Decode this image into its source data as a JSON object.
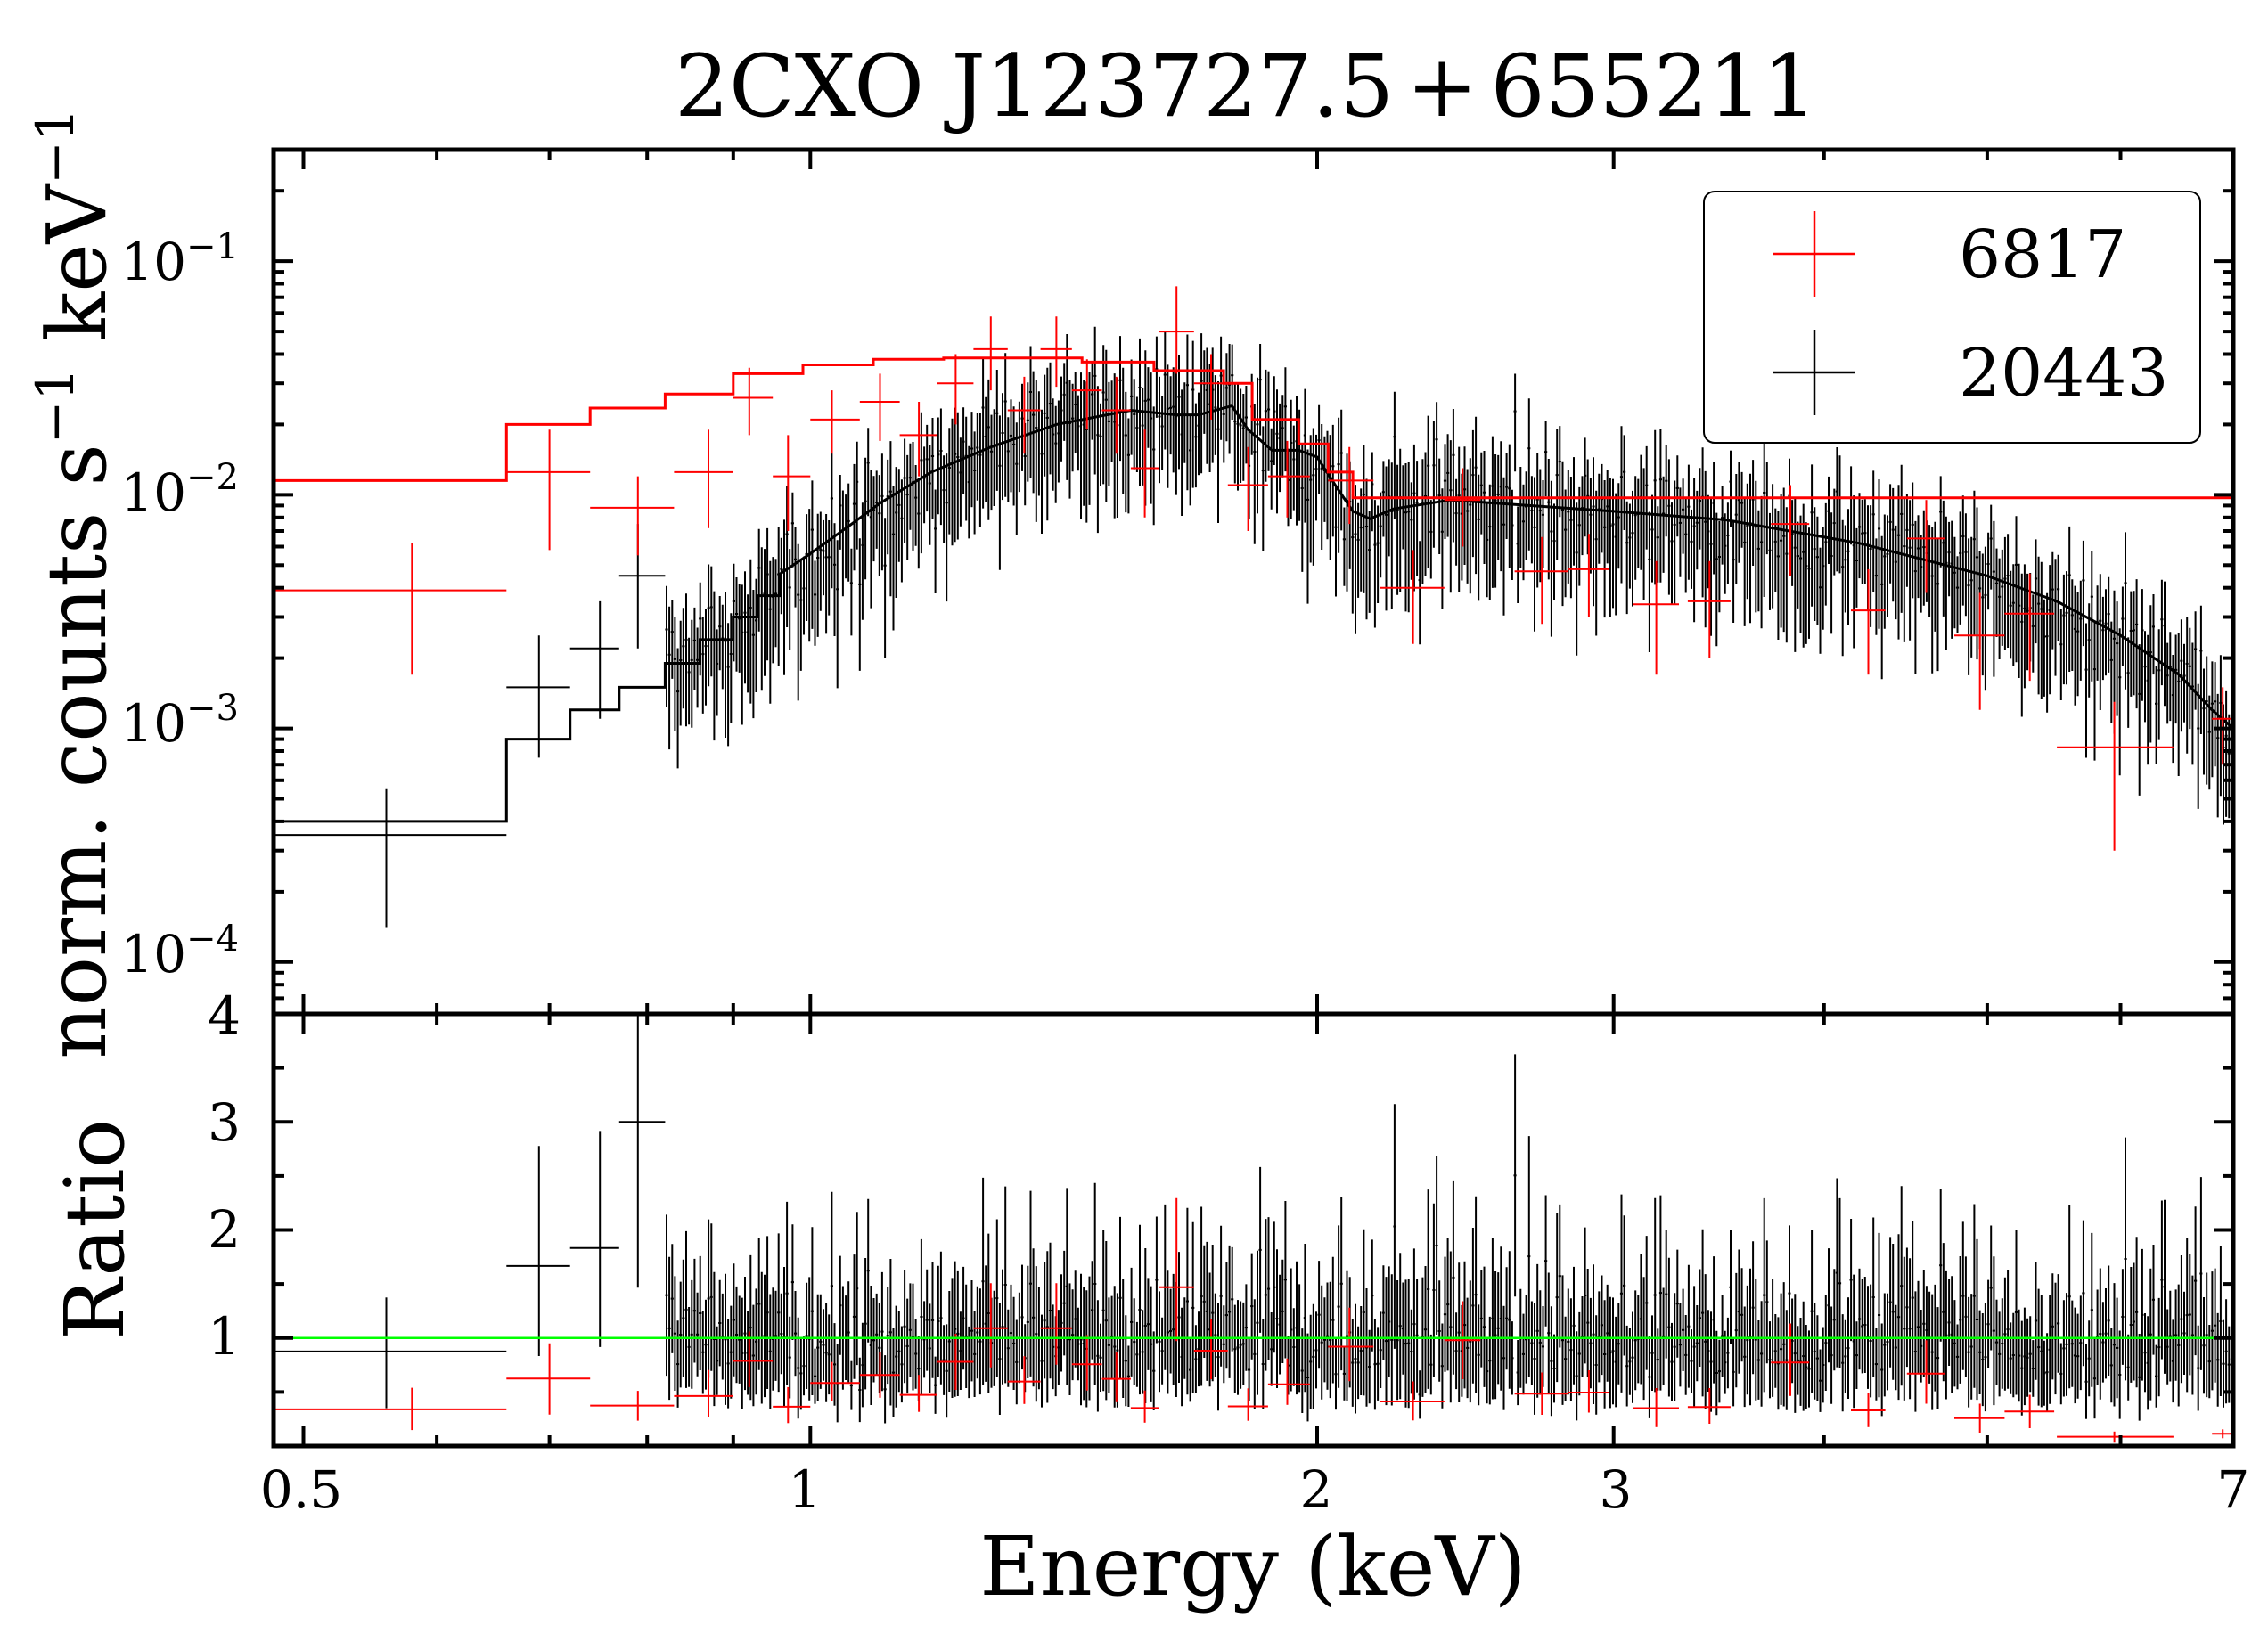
{
  "chart_data": {
    "type": "line",
    "title": "2CXO J123727.5+655211",
    "title_main": "2CXO J123727.5",
    "title_sign": "+",
    "title_tail": "655211",
    "xlabel": "Energy (keV)",
    "xscale": "log",
    "xlim": [
      0.48,
      7.0
    ],
    "xticks": [
      {
        "value": 0.5,
        "label": "0.5"
      },
      {
        "value": 1,
        "label": "1"
      },
      {
        "value": 2,
        "label": "2"
      },
      {
        "value": 3,
        "label": "3"
      },
      {
        "value": 7,
        "label": "7"
      }
    ],
    "top_panel": {
      "ylabel_main": "norm. counts s",
      "ylabel_exp1": "−1",
      "ylabel_mid": " keV",
      "ylabel_exp2": "−1",
      "yscale": "log",
      "ylim": [
        6e-05,
        0.3
      ],
      "yticks": [
        {
          "value": 0.1,
          "base": "10",
          "exp": "−1"
        },
        {
          "value": 0.01,
          "base": "10",
          "exp": "−2"
        },
        {
          "value": 0.001,
          "base": "10",
          "exp": "−3"
        },
        {
          "value": 0.0001,
          "base": "10",
          "exp": "−4"
        }
      ],
      "model_6817": {
        "edges": [
          0.48,
          0.66,
          0.74,
          0.82,
          0.9,
          0.99,
          1.09,
          1.2,
          1.32,
          1.45,
          1.6,
          1.76,
          1.83,
          1.95,
          2.03,
          2.1,
          7.0
        ],
        "values": [
          0.0115,
          0.02,
          0.0235,
          0.027,
          0.033,
          0.036,
          0.038,
          0.0385,
          0.0385,
          0.037,
          0.034,
          0.03,
          0.021,
          0.0165,
          0.0125,
          0.0097,
          0.0097
        ]
      },
      "model_20443_points": [
        [
          0.48,
          0.0004
        ],
        [
          0.66,
          0.0004
        ],
        [
          0.66,
          0.0009
        ],
        [
          0.72,
          0.0009
        ],
        [
          0.72,
          0.0012
        ],
        [
          0.77,
          0.0012
        ],
        [
          0.77,
          0.0015
        ],
        [
          0.82,
          0.0015
        ],
        [
          0.82,
          0.0019
        ],
        [
          0.86,
          0.0019
        ],
        [
          0.86,
          0.0024
        ],
        [
          0.9,
          0.0024
        ],
        [
          0.9,
          0.003
        ],
        [
          0.93,
          0.003
        ],
        [
          0.93,
          0.0037
        ],
        [
          0.96,
          0.0037
        ],
        [
          0.96,
          0.0046
        ],
        [
          1.0,
          0.0056
        ],
        [
          1.05,
          0.0072
        ],
        [
          1.1,
          0.0092
        ],
        [
          1.18,
          0.0125
        ],
        [
          1.28,
          0.016
        ],
        [
          1.4,
          0.02
        ],
        [
          1.55,
          0.023
        ],
        [
          1.65,
          0.022
        ],
        [
          1.7,
          0.022
        ],
        [
          1.78,
          0.024
        ],
        [
          1.82,
          0.019
        ],
        [
          1.88,
          0.0155
        ],
        [
          1.95,
          0.0155
        ],
        [
          2.0,
          0.0145
        ],
        [
          2.05,
          0.011
        ],
        [
          2.1,
          0.0085
        ],
        [
          2.15,
          0.0079
        ],
        [
          2.22,
          0.0087
        ],
        [
          2.4,
          0.0095
        ],
        [
          3.0,
          0.0085
        ],
        [
          3.5,
          0.0078
        ],
        [
          4.2,
          0.0062
        ],
        [
          5.0,
          0.0045
        ],
        [
          5.5,
          0.0035
        ],
        [
          6.0,
          0.0025
        ],
        [
          6.5,
          0.0017
        ],
        [
          6.8,
          0.0012
        ],
        [
          7.0,
          0.001
        ]
      ],
      "series": [
        {
          "name": "6817",
          "color": "#ff0000",
          "points": [
            {
              "x": 0.58,
              "xlo": 0.48,
              "xhi": 0.66,
              "y": 0.0039,
              "ylo": 0.0017,
              "yhi": 0.0062
            },
            {
              "x": 0.7,
              "xlo": 0.66,
              "xhi": 0.74,
              "y": 0.0125,
              "ylo": 0.0058,
              "yhi": 0.019
            },
            {
              "x": 0.79,
              "xlo": 0.74,
              "xhi": 0.83,
              "y": 0.0088,
              "ylo": 0.0055,
              "yhi": 0.012
            },
            {
              "x": 0.87,
              "xlo": 0.83,
              "xhi": 0.9,
              "y": 0.0125,
              "ylo": 0.0072,
              "yhi": 0.019
            },
            {
              "x": 0.92,
              "xlo": 0.9,
              "xhi": 0.95,
              "y": 0.026,
              "ylo": 0.018,
              "yhi": 0.035
            },
            {
              "x": 0.97,
              "xlo": 0.95,
              "xhi": 1.0,
              "y": 0.012,
              "ylo": 0.007,
              "yhi": 0.018
            },
            {
              "x": 1.03,
              "xlo": 1.0,
              "xhi": 1.07,
              "y": 0.021,
              "ylo": 0.015,
              "yhi": 0.028
            },
            {
              "x": 1.1,
              "xlo": 1.07,
              "xhi": 1.13,
              "y": 0.025,
              "ylo": 0.017,
              "yhi": 0.033
            },
            {
              "x": 1.16,
              "xlo": 1.13,
              "xhi": 1.19,
              "y": 0.018,
              "ylo": 0.012,
              "yhi": 0.025
            },
            {
              "x": 1.22,
              "xlo": 1.19,
              "xhi": 1.25,
              "y": 0.03,
              "ylo": 0.02,
              "yhi": 0.04
            },
            {
              "x": 1.28,
              "xlo": 1.25,
              "xhi": 1.31,
              "y": 0.042,
              "ylo": 0.028,
              "yhi": 0.058
            },
            {
              "x": 1.34,
              "xlo": 1.31,
              "xhi": 1.37,
              "y": 0.023,
              "ylo": 0.015,
              "yhi": 0.032
            },
            {
              "x": 1.4,
              "xlo": 1.37,
              "xhi": 1.43,
              "y": 0.042,
              "ylo": 0.029,
              "yhi": 0.058
            },
            {
              "x": 1.46,
              "xlo": 1.43,
              "xhi": 1.49,
              "y": 0.028,
              "ylo": 0.019,
              "yhi": 0.038
            },
            {
              "x": 1.52,
              "xlo": 1.49,
              "xhi": 1.55,
              "y": 0.023,
              "ylo": 0.015,
              "yhi": 0.032
            },
            {
              "x": 1.58,
              "xlo": 1.55,
              "xhi": 1.61,
              "y": 0.013,
              "ylo": 0.008,
              "yhi": 0.019
            },
            {
              "x": 1.65,
              "xlo": 1.61,
              "xhi": 1.69,
              "y": 0.05,
              "ylo": 0.033,
              "yhi": 0.078
            },
            {
              "x": 1.73,
              "xlo": 1.69,
              "xhi": 1.77,
              "y": 0.03,
              "ylo": 0.021,
              "yhi": 0.04
            },
            {
              "x": 1.82,
              "xlo": 1.77,
              "xhi": 1.87,
              "y": 0.011,
              "ylo": 0.007,
              "yhi": 0.016
            },
            {
              "x": 1.92,
              "xlo": 1.87,
              "xhi": 1.98,
              "y": 0.012,
              "ylo": 0.008,
              "yhi": 0.017
            },
            {
              "x": 2.09,
              "xlo": 2.03,
              "xhi": 2.16,
              "y": 0.0115,
              "ylo": 0.0075,
              "yhi": 0.016
            },
            {
              "x": 2.28,
              "xlo": 2.18,
              "xhi": 2.38,
              "y": 0.004,
              "ylo": 0.0023,
              "yhi": 0.0058
            },
            {
              "x": 2.44,
              "xlo": 2.38,
              "xhi": 2.5,
              "y": 0.0095,
              "ylo": 0.006,
              "yhi": 0.013
            },
            {
              "x": 2.72,
              "xlo": 2.62,
              "xhi": 2.82,
              "y": 0.0047,
              "ylo": 0.0028,
              "yhi": 0.0066
            },
            {
              "x": 2.9,
              "xlo": 2.82,
              "xhi": 2.98,
              "y": 0.0048,
              "ylo": 0.003,
              "yhi": 0.0068
            },
            {
              "x": 3.18,
              "xlo": 3.08,
              "xhi": 3.28,
              "y": 0.0034,
              "ylo": 0.0017,
              "yhi": 0.0052
            },
            {
              "x": 3.42,
              "xlo": 3.32,
              "xhi": 3.52,
              "y": 0.0035,
              "ylo": 0.002,
              "yhi": 0.0052
            },
            {
              "x": 3.82,
              "xlo": 3.72,
              "xhi": 3.92,
              "y": 0.0075,
              "ylo": 0.0045,
              "yhi": 0.011
            },
            {
              "x": 4.25,
              "xlo": 4.15,
              "xhi": 4.35,
              "y": 0.0032,
              "ylo": 0.0017,
              "yhi": 0.0048
            },
            {
              "x": 4.6,
              "xlo": 4.48,
              "xhi": 4.72,
              "y": 0.0065,
              "ylo": 0.0038,
              "yhi": 0.0095
            },
            {
              "x": 4.95,
              "xlo": 4.78,
              "xhi": 5.12,
              "y": 0.0025,
              "ylo": 0.0012,
              "yhi": 0.0038
            },
            {
              "x": 5.3,
              "xlo": 5.12,
              "xhi": 5.48,
              "y": 0.0031,
              "ylo": 0.0016,
              "yhi": 0.0046
            },
            {
              "x": 5.95,
              "xlo": 5.5,
              "xhi": 6.45,
              "y": 0.00083,
              "ylo": 0.0003,
              "yhi": 0.0013
            },
            {
              "x": 6.9,
              "xlo": 6.8,
              "xhi": 7.0,
              "y": 0.0011,
              "ylo": 0.0007,
              "yhi": 0.0015
            }
          ]
        },
        {
          "name": "20443",
          "color": "#000000",
          "points": [
            {
              "x": 0.56,
              "xlo": 0.48,
              "xhi": 0.66,
              "y": 0.00035,
              "ylo": 0.00014,
              "yhi": 0.00055
            },
            {
              "x": 0.69,
              "xlo": 0.66,
              "xhi": 0.72,
              "y": 0.0015,
              "ylo": 0.00075,
              "yhi": 0.0025
            },
            {
              "x": 0.75,
              "xlo": 0.72,
              "xhi": 0.77,
              "y": 0.0022,
              "ylo": 0.0011,
              "yhi": 0.0035
            },
            {
              "x": 0.79,
              "xlo": 0.77,
              "xhi": 0.82,
              "y": 0.0045,
              "ylo": 0.0022,
              "yhi": 0.0075
            }
          ],
          "generated": {
            "count": 560,
            "xmin": 0.82,
            "xmax": 7.0,
            "seed": 7,
            "scatter_dex": 0.1,
            "relerr_lo": 0.35,
            "relerr_hi": 0.65
          }
        }
      ]
    },
    "bottom_panel": {
      "ylabel": "Ratio",
      "yscale": "linear",
      "ylim": [
        0.0,
        4.0
      ],
      "yticks": [
        {
          "value": 1,
          "label": "1"
        },
        {
          "value": 2,
          "label": "2"
        },
        {
          "value": 3,
          "label": "3"
        },
        {
          "value": 4,
          "label": "4"
        }
      ],
      "reference_line": {
        "y": 1.0,
        "color": "#00ff00"
      }
    },
    "legend": {
      "position": "top-right",
      "entries": [
        {
          "label": "6817",
          "color": "#ff0000"
        },
        {
          "label": "20443",
          "color": "#000000"
        }
      ]
    }
  }
}
